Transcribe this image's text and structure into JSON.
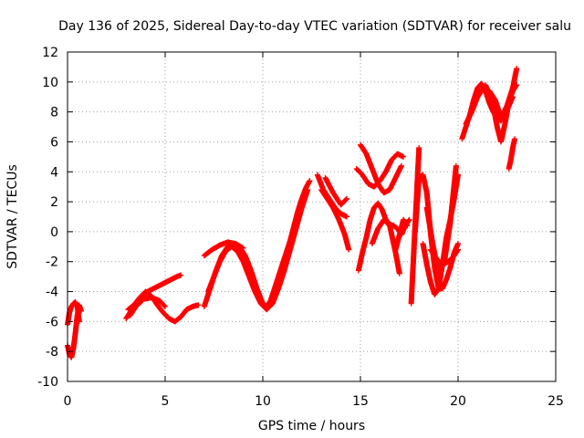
{
  "chart_data": {
    "type": "scatter",
    "title": "Day 136 of 2025, Sidereal Day-to-day VTEC variation (SDTVAR) for receiver salu",
    "xlabel": "GPS time / hours",
    "ylabel": "SDTVAR / TECUs",
    "xlim": [
      0,
      25
    ],
    "ylim": [
      -10,
      12
    ],
    "xticks": [
      0,
      5,
      10,
      15,
      20,
      25
    ],
    "yticks": [
      -10,
      -8,
      -6,
      -4,
      -2,
      0,
      2,
      4,
      6,
      8,
      10,
      12
    ],
    "grid": true,
    "marker": "+",
    "color": "#ff0000",
    "series": [
      {
        "name": "SDTVAR",
        "segments": [
          {
            "x": [
              0.0,
              0.1,
              0.2,
              0.3,
              0.4,
              0.5,
              0.6,
              0.7
            ],
            "y": [
              -7.6,
              -8.2,
              -8.4,
              -7.8,
              -6.8,
              -5.6,
              -4.9,
              -5.3
            ]
          },
          {
            "x": [
              0.0,
              0.1,
              0.2,
              0.3,
              0.4,
              0.5,
              0.6
            ],
            "y": [
              -6.2,
              -5.4,
              -5.0,
              -4.8,
              -4.7,
              -5.0,
              -6.0
            ]
          },
          {
            "x": [
              3.0,
              3.2,
              3.5,
              3.8,
              4.1,
              4.4,
              4.7,
              5.0,
              5.3,
              5.6,
              5.8
            ],
            "y": [
              -5.8,
              -5.4,
              -4.9,
              -4.4,
              -4.0,
              -3.8,
              -3.6,
              -3.4,
              -3.2,
              -3.0,
              -2.9
            ]
          },
          {
            "x": [
              3.1,
              3.4,
              3.7,
              4.0,
              4.3,
              4.6,
              4.9,
              5.2,
              5.5,
              5.8,
              6.1,
              6.4,
              6.7
            ],
            "y": [
              -5.2,
              -4.9,
              -4.4,
              -4.0,
              -4.3,
              -4.9,
              -5.4,
              -5.8,
              -6.0,
              -5.7,
              -5.2,
              -5.0,
              -4.9
            ]
          },
          {
            "x": [
              3.2,
              3.5,
              3.9,
              4.3,
              4.7,
              5.0
            ],
            "y": [
              -5.6,
              -5.0,
              -4.5,
              -4.4,
              -4.6,
              -5.0
            ]
          },
          {
            "x": [
              7.0,
              7.3,
              7.6,
              7.9,
              8.2,
              8.5,
              8.8,
              9.1,
              9.4,
              9.7,
              10.0,
              10.2,
              10.4,
              10.6,
              10.8,
              11.0,
              11.2,
              11.4,
              11.6,
              11.8,
              12.0,
              12.2,
              12.4
            ],
            "y": [
              -5.0,
              -3.8,
              -2.6,
              -1.6,
              -1.0,
              -0.8,
              -1.0,
              -1.6,
              -2.6,
              -3.8,
              -4.8,
              -5.0,
              -4.6,
              -3.8,
              -3.0,
              -2.2,
              -1.4,
              -0.6,
              0.4,
              1.4,
              2.2,
              2.9,
              3.4
            ]
          },
          {
            "x": [
              7.2,
              7.5,
              7.8,
              8.1,
              8.4,
              8.7,
              9.0,
              9.3,
              9.6,
              9.9,
              10.2,
              10.5,
              10.8,
              11.1,
              11.4,
              11.7,
              12.0,
              12.3
            ],
            "y": [
              -4.0,
              -3.0,
              -2.0,
              -1.3,
              -1.0,
              -1.3,
              -2.0,
              -3.0,
              -4.0,
              -4.8,
              -5.2,
              -4.8,
              -3.8,
              -2.6,
              -1.2,
              0.2,
              1.6,
              2.8
            ]
          },
          {
            "x": [
              7.0,
              7.4,
              7.8,
              8.2,
              8.6,
              9.0
            ],
            "y": [
              -1.6,
              -1.2,
              -0.9,
              -0.7,
              -0.8,
              -1.1
            ]
          },
          {
            "x": [
              12.8,
              13.1,
              13.4,
              13.7,
              14.0,
              14.3
            ],
            "y": [
              3.8,
              2.8,
              2.2,
              1.6,
              1.2,
              1.0
            ]
          },
          {
            "x": [
              13.0,
              13.3,
              13.6,
              13.9,
              14.2,
              14.4
            ],
            "y": [
              2.8,
              2.2,
              1.6,
              0.8,
              -0.2,
              -1.2
            ]
          },
          {
            "x": [
              13.2,
              13.6,
              14.0,
              14.3
            ],
            "y": [
              3.6,
              2.6,
              1.8,
              2.2
            ]
          },
          {
            "x": [
              14.8,
              15.1,
              15.4,
              15.7,
              16.0,
              16.3,
              16.6,
              16.9,
              17.2
            ],
            "y": [
              4.2,
              3.8,
              3.2,
              3.0,
              3.4,
              4.0,
              4.8,
              5.2,
              5.0
            ]
          },
          {
            "x": [
              15.0,
              15.3,
              15.6,
              15.9,
              16.2,
              16.5,
              16.8,
              17.1
            ],
            "y": [
              5.8,
              5.2,
              4.2,
              3.2,
              2.6,
              2.8,
              3.6,
              4.4
            ]
          },
          {
            "x": [
              14.9,
              15.1,
              15.3,
              15.5,
              15.7,
              15.9,
              16.1,
              16.3,
              16.5,
              16.7,
              16.9,
              17.1,
              17.3,
              17.5
            ],
            "y": [
              -2.6,
              -1.4,
              -0.4,
              0.8,
              1.6,
              1.9,
              1.5,
              0.8,
              0.5,
              0.4,
              0.2,
              -0.2,
              0.4,
              0.8
            ]
          },
          {
            "x": [
              15.6,
              15.9,
              16.2,
              16.5,
              16.8,
              17.0
            ],
            "y": [
              -0.8,
              0.2,
              0.8,
              0.4,
              -1.4,
              -2.8
            ]
          },
          {
            "x": [
              16.8,
              17.0,
              17.2,
              17.4
            ],
            "y": [
              -1.2,
              -0.2,
              0.8,
              0.4
            ]
          },
          {
            "x": [
              17.6,
              18.0
            ],
            "y": [
              -4.8,
              5.6
            ]
          },
          {
            "x": [
              17.8,
              18.0,
              18.2,
              18.4,
              18.6,
              18.8,
              19.0,
              19.2,
              19.4,
              19.6,
              19.8,
              20.0
            ],
            "y": [
              0.0,
              3.6,
              3.8,
              2.6,
              -0.2,
              -2.4,
              -3.8,
              -3.8,
              -3.2,
              -2.4,
              -1.4,
              -0.8
            ]
          },
          {
            "x": [
              18.2,
              18.4,
              18.6,
              18.8,
              19.0,
              19.2,
              19.4,
              19.6,
              19.8,
              20.0
            ],
            "y": [
              -0.8,
              -2.2,
              -3.4,
              -4.2,
              -3.8,
              -2.2,
              -0.4,
              0.8,
              2.2,
              3.8
            ]
          },
          {
            "x": [
              18.4,
              18.7,
              19.0,
              19.3,
              19.6,
              19.9
            ],
            "y": [
              1.6,
              -0.8,
              -2.8,
              -2.0,
              0.6,
              4.4
            ]
          },
          {
            "x": [
              18.6,
              18.9,
              19.2,
              19.5,
              19.8,
              20.0
            ],
            "y": [
              -1.2,
              -1.8,
              -2.2,
              -2.0,
              -1.6,
              -1.2
            ]
          },
          {
            "x": [
              20.2,
              20.4,
              20.6,
              20.8,
              21.0,
              21.2,
              21.4,
              21.6,
              21.8,
              22.0,
              22.2,
              22.4,
              22.6,
              22.8
            ],
            "y": [
              6.2,
              7.0,
              7.8,
              8.8,
              9.6,
              9.9,
              9.4,
              8.6,
              8.0,
              7.6,
              7.4,
              7.8,
              8.4,
              9.0
            ]
          },
          {
            "x": [
              20.4,
              20.7,
              21.0,
              21.3,
              21.6,
              21.9,
              22.2,
              22.5,
              22.8,
              23.0
            ],
            "y": [
              7.2,
              8.0,
              9.0,
              9.6,
              9.4,
              8.8,
              7.6,
              8.4,
              9.6,
              10.9
            ]
          },
          {
            "x": [
              21.4,
              21.6,
              21.8,
              22.0,
              22.2,
              22.4,
              22.6,
              22.8,
              23.0
            ],
            "y": [
              9.8,
              9.2,
              8.4,
              7.0,
              6.0,
              7.2,
              8.6,
              9.4,
              9.8
            ]
          },
          {
            "x": [
              22.6,
              22.7,
              22.8,
              22.9
            ],
            "y": [
              4.2,
              4.8,
              5.6,
              6.2
            ]
          }
        ]
      }
    ]
  }
}
